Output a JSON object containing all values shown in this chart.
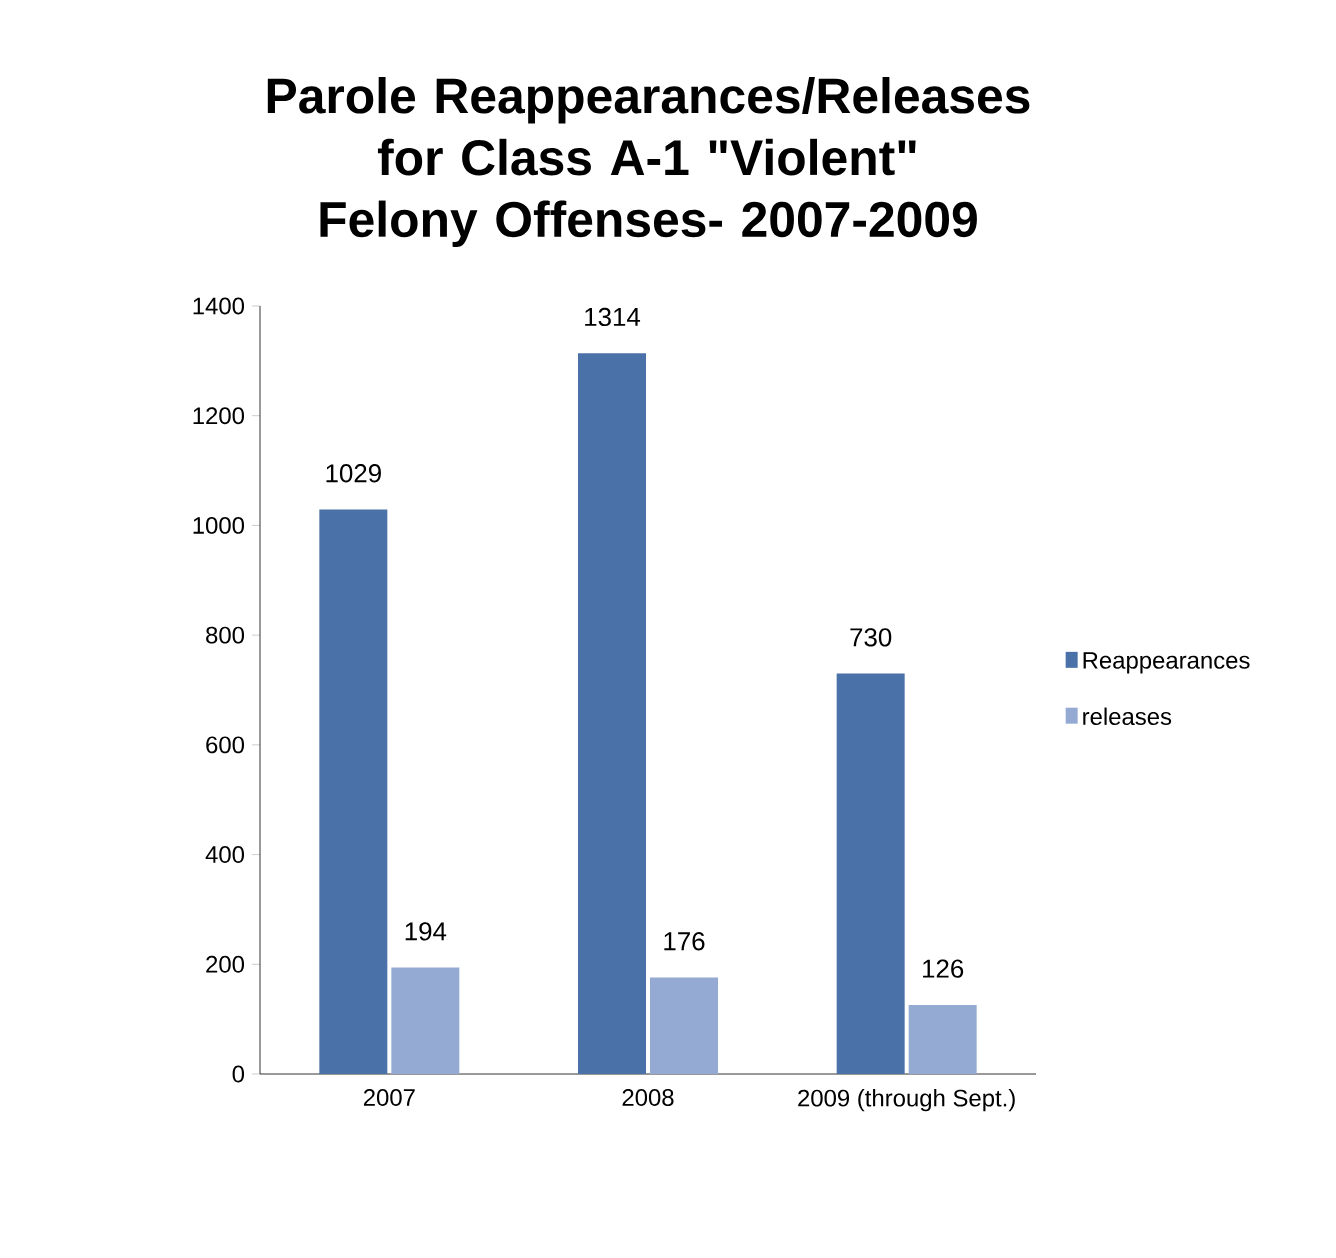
{
  "chart_data": {
    "type": "bar",
    "title": "Parole Reappearances/Releases for Class A-1 \"Violent\" Felony Offenses- 2007-2009",
    "categories": [
      "2007",
      "2008",
      "2009 (through Sept.)"
    ],
    "series": [
      {
        "name": "Reappearances",
        "color": "#4a72a8",
        "values": [
          1029,
          1314,
          730
        ]
      },
      {
        "name": "releases",
        "color": "#95aad2",
        "values": [
          194,
          176,
          126
        ]
      }
    ],
    "ylim": [
      0,
      1400
    ],
    "yticks": [
      0,
      200,
      400,
      600,
      800,
      1000,
      1200,
      1400
    ],
    "data_labels": true,
    "grid": false,
    "legend": "right"
  }
}
